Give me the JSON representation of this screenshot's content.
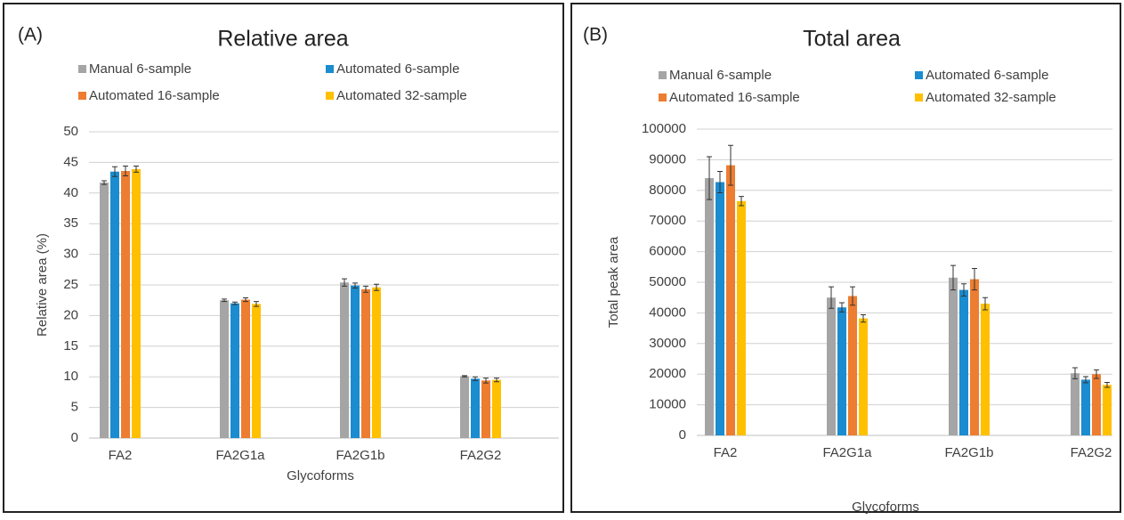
{
  "chart_data": [
    {
      "type": "bar",
      "label": "(A)",
      "title": "Relative area",
      "x_label": "Glycoforms",
      "y_label": "Relative area (%)",
      "categories": [
        "FA2",
        "FA2G1a",
        "FA2G1b",
        "FA2G2"
      ],
      "series": [
        {
          "name": "Manual 6-sample",
          "color": "#a5a5a5",
          "values": [
            41.7,
            22.5,
            25.4,
            10.1
          ],
          "errors": [
            0.3,
            0.2,
            0.6,
            0.1
          ]
        },
        {
          "name": "Automated 6-sample",
          "color": "#1a8ccf",
          "values": [
            43.5,
            22.0,
            24.9,
            9.7
          ],
          "errors": [
            0.8,
            0.2,
            0.4,
            0.3
          ]
        },
        {
          "name": "Automated 16-sample",
          "color": "#ed7d31",
          "values": [
            43.6,
            22.6,
            24.3,
            9.4
          ],
          "errors": [
            0.8,
            0.3,
            0.5,
            0.4
          ]
        },
        {
          "name": "Automated 32-sample",
          "color": "#ffc000",
          "values": [
            43.9,
            21.9,
            24.6,
            9.5
          ],
          "errors": [
            0.5,
            0.4,
            0.5,
            0.3
          ]
        }
      ],
      "ylim": [
        0,
        50
      ],
      "yticks": [
        0,
        5,
        10,
        15,
        20,
        25,
        30,
        35,
        40,
        45,
        50
      ],
      "grid": true
    },
    {
      "type": "bar",
      "label": "(B)",
      "title": "Total area",
      "x_label": "Glycoforms",
      "y_label": "Total peak area",
      "categories": [
        "FA2",
        "FA2G1a",
        "FA2G1b",
        "FA2G2"
      ],
      "series": [
        {
          "name": "Manual 6-sample",
          "color": "#a5a5a5",
          "values": [
            84000,
            45000,
            51500,
            20300
          ],
          "errors": [
            7000,
            3500,
            4000,
            1800
          ]
        },
        {
          "name": "Automated 6-sample",
          "color": "#1a8ccf",
          "values": [
            82700,
            41800,
            47500,
            18200
          ],
          "errors": [
            3500,
            1500,
            2000,
            1000
          ]
        },
        {
          "name": "Automated 16-sample",
          "color": "#ed7d31",
          "values": [
            88200,
            45500,
            51000,
            20000
          ],
          "errors": [
            6500,
            3000,
            3500,
            1400
          ]
        },
        {
          "name": "Automated 32-sample",
          "color": "#ffc000",
          "values": [
            76500,
            38200,
            43000,
            16500
          ],
          "errors": [
            1500,
            1200,
            2000,
            800
          ]
        }
      ],
      "ylim": [
        0,
        100000
      ],
      "yticks": [
        0,
        10000,
        20000,
        30000,
        40000,
        50000,
        60000,
        70000,
        80000,
        90000,
        100000
      ],
      "grid": true
    }
  ]
}
